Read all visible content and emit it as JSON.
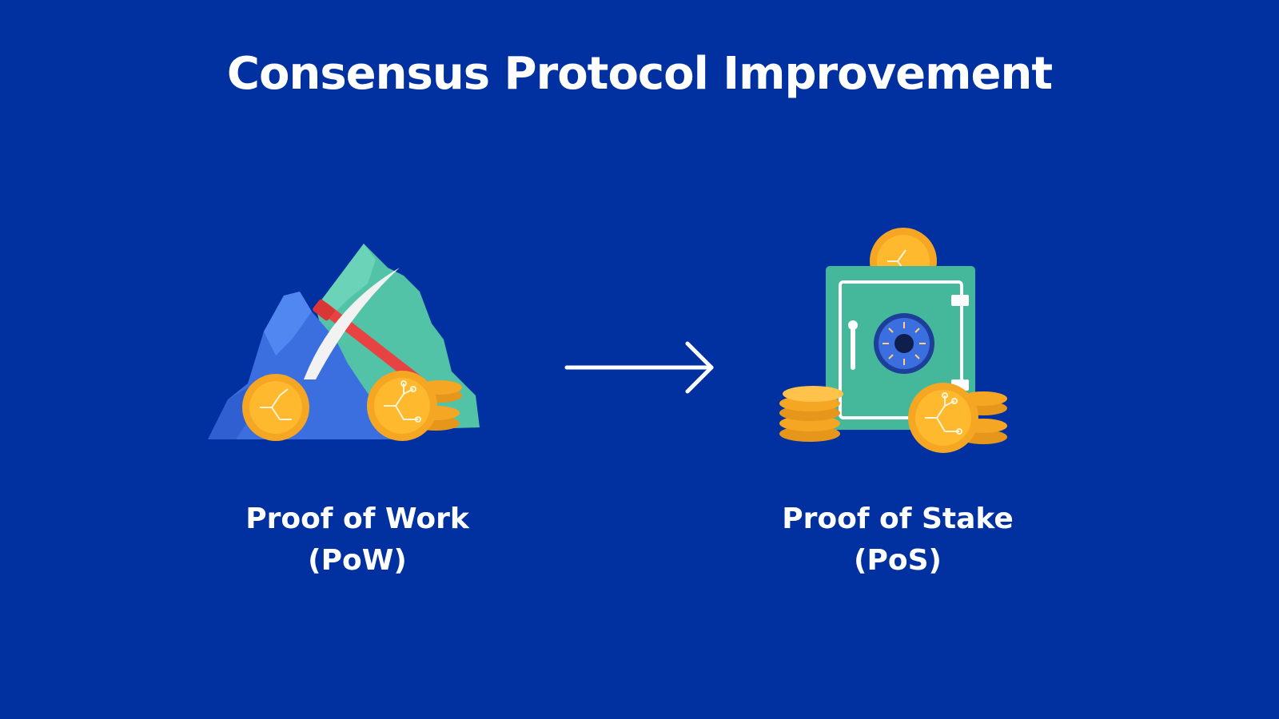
{
  "title": "Consensus Protocol Improvement",
  "left": {
    "label_line1": "Proof of Work",
    "label_line2": "(PoW)",
    "icon": "mining-pickaxe-icon"
  },
  "right": {
    "label_line1": "Proof of Stake",
    "label_line2": "(PoS)",
    "icon": "safe-with-coins-icon"
  },
  "connector": "arrow-right-icon",
  "colors": {
    "background": "#0130A0",
    "text": "#FFFFFF",
    "mountain_blue": "#3B6FE0",
    "mountain_green": "#52C3A6",
    "coin_gold": "#F5A623",
    "safe_green": "#45B89C"
  }
}
